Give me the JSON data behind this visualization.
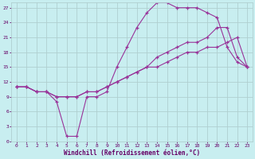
{
  "bg_color": "#c8eef0",
  "grid_color": "#b0d0d0",
  "line_color": "#993399",
  "xlabel": "Windchill (Refroidissement éolien,°C)",
  "xlabel_color": "#660066",
  "tick_color": "#660066",
  "xlim": [
    -0.5,
    23.5
  ],
  "ylim": [
    0,
    28
  ],
  "xticks": [
    0,
    1,
    2,
    3,
    4,
    5,
    6,
    7,
    8,
    9,
    10,
    11,
    12,
    13,
    14,
    15,
    16,
    17,
    18,
    19,
    20,
    21,
    22,
    23
  ],
  "yticks": [
    0,
    3,
    6,
    9,
    12,
    15,
    18,
    21,
    24,
    27
  ],
  "line1_x": [
    0,
    1,
    2,
    3,
    4,
    5,
    6,
    7,
    8,
    9,
    10,
    11,
    12,
    13,
    14,
    15,
    16,
    17,
    18,
    19,
    20,
    21,
    22,
    23
  ],
  "line1_y": [
    11,
    11,
    10,
    10,
    8,
    1,
    1,
    9,
    9,
    10,
    15,
    19,
    23,
    26,
    28,
    28,
    27,
    27,
    27,
    26,
    25,
    19,
    16,
    15
  ],
  "line2_x": [
    0,
    1,
    2,
    3,
    4,
    5,
    6,
    7,
    8,
    9,
    10,
    11,
    12,
    13,
    14,
    15,
    16,
    17,
    18,
    19,
    20,
    21,
    22,
    23
  ],
  "line2_y": [
    11,
    11,
    10,
    10,
    9,
    9,
    9,
    10,
    10,
    11,
    12,
    13,
    14,
    15,
    17,
    18,
    19,
    20,
    20,
    21,
    23,
    23,
    17,
    15
  ],
  "line3_x": [
    0,
    1,
    2,
    3,
    4,
    5,
    6,
    7,
    8,
    9,
    10,
    11,
    12,
    13,
    14,
    15,
    16,
    17,
    18,
    19,
    20,
    21,
    22,
    23
  ],
  "line3_y": [
    11,
    11,
    10,
    10,
    9,
    9,
    9,
    10,
    10,
    11,
    12,
    13,
    14,
    15,
    15,
    16,
    17,
    18,
    18,
    19,
    19,
    20,
    21,
    15
  ]
}
